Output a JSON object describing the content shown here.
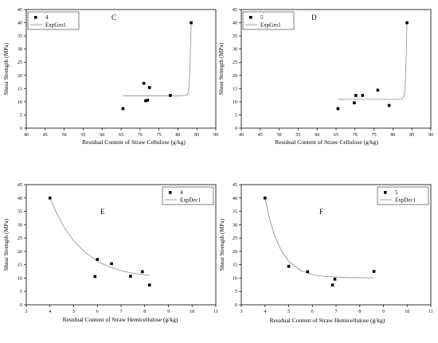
{
  "chart_data": [
    {
      "panel_label": "C",
      "type": "scatter",
      "xlabel": "Residual Content of Straw Cellulose (g/kg)",
      "ylabel": "Shear Strength (MPa)",
      "xlim": [
        40,
        90
      ],
      "ylim": [
        0,
        45
      ],
      "xticks": [
        "40",
        "45",
        "50",
        "55",
        "60",
        "65",
        "70",
        "75",
        "80",
        "85",
        "90"
      ],
      "yticks": [
        "0",
        "5",
        "10",
        "15",
        "20",
        "25",
        "30",
        "35",
        "40",
        "45"
      ],
      "legend": {
        "position": "top-left",
        "points_label": "4",
        "fit_label": "ExpGro1"
      },
      "points": [
        {
          "x": 65.5,
          "y": 7.4
        },
        {
          "x": 71.0,
          "y": 17.0
        },
        {
          "x": 71.5,
          "y": 10.4
        },
        {
          "x": 72.0,
          "y": 10.6
        },
        {
          "x": 72.5,
          "y": 15.4
        },
        {
          "x": 78.0,
          "y": 12.4
        },
        {
          "x": 83.5,
          "y": 40.0
        }
      ],
      "fit": [
        {
          "x": 65.5,
          "y": 12.3
        },
        {
          "x": 70,
          "y": 12.3
        },
        {
          "x": 75,
          "y": 12.3
        },
        {
          "x": 80,
          "y": 12.3
        },
        {
          "x": 82,
          "y": 12.4
        },
        {
          "x": 82.6,
          "y": 13.0
        },
        {
          "x": 82.9,
          "y": 15.5
        },
        {
          "x": 83.1,
          "y": 20.0
        },
        {
          "x": 83.3,
          "y": 30.0
        },
        {
          "x": 83.5,
          "y": 40.0
        }
      ]
    },
    {
      "panel_label": "D",
      "type": "scatter",
      "xlabel": "Residual Content of Straw Cellulose (g/kg)",
      "ylabel": "Shear Strength (MPa)",
      "xlim": [
        40,
        90
      ],
      "ylim": [
        0,
        45
      ],
      "xticks": [
        "40",
        "45",
        "50",
        "55",
        "60",
        "65",
        "70",
        "75",
        "80",
        "85",
        "90"
      ],
      "yticks": [
        "0",
        "5",
        "10",
        "15",
        "20",
        "25",
        "30",
        "35",
        "40",
        "45"
      ],
      "legend": {
        "position": "top-left",
        "points_label": "5",
        "fit_label": "ExpGro1"
      },
      "points": [
        {
          "x": 65.5,
          "y": 7.4
        },
        {
          "x": 69.8,
          "y": 9.6
        },
        {
          "x": 70.2,
          "y": 12.4
        },
        {
          "x": 72.0,
          "y": 12.4
        },
        {
          "x": 76.0,
          "y": 14.4
        },
        {
          "x": 79.0,
          "y": 8.6
        },
        {
          "x": 83.7,
          "y": 40.0
        }
      ],
      "fit": [
        {
          "x": 65.5,
          "y": 10.9
        },
        {
          "x": 70,
          "y": 10.9
        },
        {
          "x": 75,
          "y": 10.9
        },
        {
          "x": 80,
          "y": 10.9
        },
        {
          "x": 82.3,
          "y": 11.0
        },
        {
          "x": 82.8,
          "y": 11.8
        },
        {
          "x": 83.1,
          "y": 14.0
        },
        {
          "x": 83.3,
          "y": 18.0
        },
        {
          "x": 83.5,
          "y": 27.0
        },
        {
          "x": 83.7,
          "y": 40.0
        }
      ]
    },
    {
      "panel_label": "E",
      "type": "scatter",
      "xlabel": "Residual Content of Straw Hemicellulose (g/kg)",
      "ylabel": "Shear Strength (MPa)",
      "xlim": [
        3,
        11
      ],
      "ylim": [
        0,
        45
      ],
      "xticks": [
        "3",
        "4",
        "5",
        "6",
        "7",
        "8",
        "9",
        "10",
        "11"
      ],
      "yticks": [
        "0",
        "5",
        "10",
        "15",
        "20",
        "25",
        "30",
        "35",
        "40",
        "45"
      ],
      "legend": {
        "position": "top-right",
        "points_label": "4",
        "fit_label": "ExpDec1"
      },
      "points": [
        {
          "x": 4.0,
          "y": 40.0
        },
        {
          "x": 5.9,
          "y": 10.6
        },
        {
          "x": 6.0,
          "y": 17.0
        },
        {
          "x": 6.6,
          "y": 15.4
        },
        {
          "x": 7.4,
          "y": 10.7
        },
        {
          "x": 7.9,
          "y": 12.4
        },
        {
          "x": 8.2,
          "y": 7.4
        }
      ],
      "fit": [
        {
          "x": 4.0,
          "y": 40.0
        },
        {
          "x": 4.3,
          "y": 34.0
        },
        {
          "x": 4.6,
          "y": 29.0
        },
        {
          "x": 5.0,
          "y": 24.0
        },
        {
          "x": 5.5,
          "y": 19.5
        },
        {
          "x": 6.0,
          "y": 16.3
        },
        {
          "x": 6.5,
          "y": 14.2
        },
        {
          "x": 7.0,
          "y": 12.8
        },
        {
          "x": 7.5,
          "y": 11.8
        },
        {
          "x": 8.2,
          "y": 11.0
        }
      ]
    },
    {
      "panel_label": "F",
      "type": "scatter",
      "xlabel": "Residual Content of Straw Hemicellulose (g/kg)",
      "ylabel": "Shear Strength (MPa)",
      "xlim": [
        3,
        11
      ],
      "ylim": [
        0,
        45
      ],
      "xticks": [
        "3",
        "4",
        "5",
        "6",
        "7",
        "8",
        "9",
        "10",
        "11"
      ],
      "yticks": [
        "0",
        "5",
        "10",
        "15",
        "20",
        "25",
        "30",
        "35",
        "40",
        "45"
      ],
      "legend": {
        "position": "top-right",
        "points_label": "5",
        "fit_label": "ExpDec1"
      },
      "points": [
        {
          "x": 4.0,
          "y": 40.0
        },
        {
          "x": 5.0,
          "y": 14.4
        },
        {
          "x": 5.8,
          "y": 12.4
        },
        {
          "x": 6.85,
          "y": 7.4
        },
        {
          "x": 6.95,
          "y": 9.6
        },
        {
          "x": 8.6,
          "y": 12.5
        }
      ],
      "fit": [
        {
          "x": 4.0,
          "y": 40.0
        },
        {
          "x": 4.2,
          "y": 32.0
        },
        {
          "x": 4.4,
          "y": 26.0
        },
        {
          "x": 4.7,
          "y": 20.0
        },
        {
          "x": 5.0,
          "y": 16.3
        },
        {
          "x": 5.5,
          "y": 12.8
        },
        {
          "x": 6.0,
          "y": 11.3
        },
        {
          "x": 6.5,
          "y": 10.6
        },
        {
          "x": 7.5,
          "y": 10.2
        },
        {
          "x": 8.6,
          "y": 10.1
        }
      ]
    }
  ]
}
